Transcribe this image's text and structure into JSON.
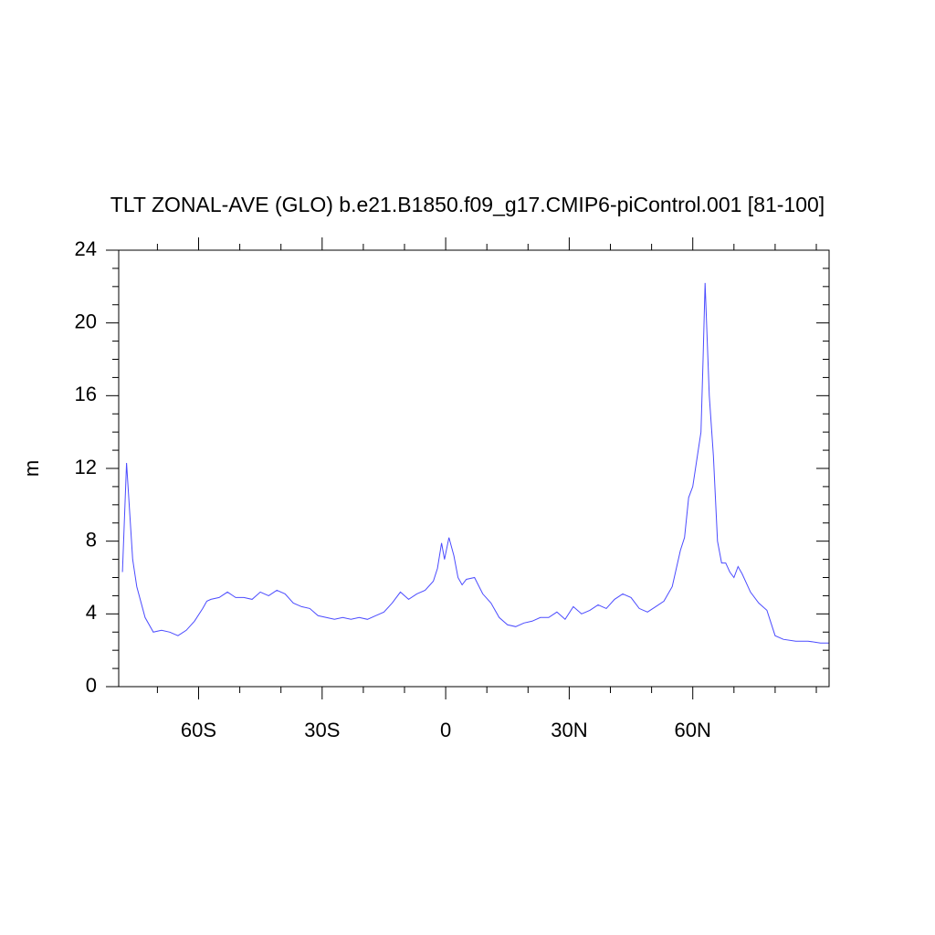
{
  "chart_data": {
    "type": "line",
    "title": "TLT ZONAL-AVE (GLO) b.e21.B1850.f09_g17.CMIP6-piControl.001 [81-100]",
    "ylabel": "m",
    "xlim": [
      -79.4,
      93.1
    ],
    "ylim": [
      0,
      24
    ],
    "xticks": [
      {
        "value": -60,
        "label": "60S"
      },
      {
        "value": -30,
        "label": "30S"
      },
      0,
      {
        "value": 30,
        "label": "30N"
      },
      {
        "value": 60,
        "label": "60N"
      }
    ],
    "xminorticks": [
      -70,
      -50,
      -40,
      -20,
      -10,
      10,
      20,
      40,
      50,
      70,
      80,
      90
    ],
    "yticks": [
      0,
      4,
      8,
      12,
      16,
      20,
      24
    ],
    "yminorticks": [
      1,
      2,
      3,
      5,
      6,
      7,
      9,
      10,
      11,
      13,
      14,
      15,
      17,
      18,
      19,
      21,
      22,
      23
    ],
    "x": [
      -78.5,
      -77.5,
      -76,
      -75,
      -73,
      -71,
      -69,
      -67,
      -65,
      -63,
      -61,
      -59,
      -58,
      -57,
      -55,
      -53,
      -51,
      -49,
      -47,
      -45,
      -43,
      -41,
      -39,
      -37,
      -35,
      -33,
      -31,
      -29,
      -27,
      -25,
      -23,
      -21,
      -19,
      -17,
      -15,
      -13,
      -11,
      -9,
      -7,
      -5,
      -3,
      -2,
      -1,
      -0.3,
      0.8,
      2,
      3,
      4,
      5,
      7,
      9,
      11,
      13,
      15,
      17,
      19,
      21,
      23,
      25,
      27,
      29,
      31,
      33,
      35,
      37,
      39,
      41,
      43,
      45,
      47,
      49,
      51,
      53,
      55,
      57,
      58,
      59,
      60,
      61,
      62,
      62.5,
      63,
      64,
      65,
      66,
      67,
      68,
      69,
      70,
      71,
      72,
      74,
      76,
      78,
      79,
      80,
      82,
      85,
      88,
      91,
      93
    ],
    "series": [
      {
        "color": "#4b4bff",
        "values": [
          6.3,
          12.3,
          7,
          5.5,
          3.8,
          3.0,
          3.1,
          3.0,
          2.8,
          3.1,
          3.6,
          4.3,
          4.7,
          4.8,
          4.9,
          5.2,
          4.9,
          4.9,
          4.8,
          5.2,
          5.0,
          5.3,
          5.1,
          4.6,
          4.4,
          4.3,
          3.9,
          3.8,
          3.7,
          3.8,
          3.7,
          3.8,
          3.7,
          3.9,
          4.1,
          4.6,
          5.2,
          4.8,
          5.1,
          5.3,
          5.8,
          6.5,
          7.9,
          7.0,
          8.2,
          7.2,
          6.0,
          5.6,
          5.9,
          6.0,
          5.1,
          4.6,
          3.8,
          3.4,
          3.3,
          3.5,
          3.6,
          3.8,
          3.8,
          4.1,
          3.7,
          4.4,
          4.0,
          4.2,
          4.5,
          4.3,
          4.8,
          5.1,
          4.9,
          4.3,
          4.1,
          4.4,
          4.7,
          5.5,
          7.5,
          8.2,
          10.4,
          11.0,
          12.5,
          14.0,
          18,
          22.2,
          16,
          12.7,
          8,
          6.8,
          6.8,
          6.3,
          6.0,
          6.6,
          6.2,
          5.2,
          4.6,
          4.2,
          3.5,
          2.8,
          2.6,
          2.5,
          2.5,
          2.4,
          2.4
        ]
      }
    ]
  }
}
